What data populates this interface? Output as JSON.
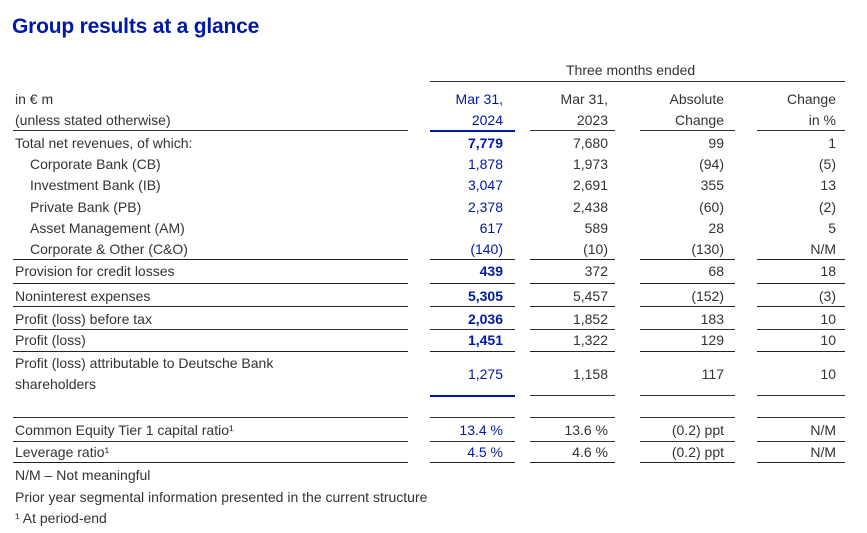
{
  "title": "Group results at a glance",
  "colors": {
    "accent": "#0018a8",
    "text": "#333333"
  },
  "header": {
    "group": "Three months ended",
    "unit_line1": "in € m",
    "unit_line2": "(unless stated otherwise)",
    "col1_line1": "Mar 31,",
    "col1_line2": "2024",
    "col2_line1": "Mar 31,",
    "col2_line2": "2023",
    "col3_line1": "Absolute",
    "col3_line2": "Change",
    "col4_line1": "Change",
    "col4_line2": "in %"
  },
  "rows": [
    {
      "label": "Total net revenues, of which:",
      "c1": "7,779",
      "c2": "7,680",
      "c3": "99",
      "c4": "1"
    },
    {
      "label": "Corporate Bank (CB)",
      "c1": "1,878",
      "c2": "1,973",
      "c3": "(94)",
      "c4": "(5)"
    },
    {
      "label": "Investment Bank (IB)",
      "c1": "3,047",
      "c2": "2,691",
      "c3": "355",
      "c4": "13"
    },
    {
      "label": "Private Bank (PB)",
      "c1": "2,378",
      "c2": "2,438",
      "c3": "(60)",
      "c4": "(2)"
    },
    {
      "label": "Asset Management (AM)",
      "c1": "617",
      "c2": "589",
      "c3": "28",
      "c4": "5"
    },
    {
      "label": "Corporate & Other (C&O)",
      "c1": "(140)",
      "c2": "(10)",
      "c3": "(130)",
      "c4": "N/M"
    },
    {
      "label": "Provision for credit losses",
      "c1": "439",
      "c2": "372",
      "c3": "68",
      "c4": "18"
    },
    {
      "label": "Noninterest expenses",
      "c1": "5,305",
      "c2": "5,457",
      "c3": "(152)",
      "c4": "(3)"
    },
    {
      "label": "Profit (loss) before tax",
      "c1": "2,036",
      "c2": "1,852",
      "c3": "183",
      "c4": "10"
    },
    {
      "label": "Profit (loss)",
      "c1": "1,451",
      "c2": "1,322",
      "c3": "129",
      "c4": "10"
    },
    {
      "label_line1": "Profit (loss) attributable to Deutsche Bank",
      "label_line2": "shareholders",
      "c1": "1,275",
      "c2": "1,158",
      "c3": "117",
      "c4": "10"
    },
    {
      "label": "Common Equity Tier 1 capital ratio¹",
      "c1": "13.4 %",
      "c2": "13.6 %",
      "c3": "(0.2) ppt",
      "c4": "N/M"
    },
    {
      "label": "Leverage ratio¹",
      "c1": "4.5 %",
      "c2": "4.6 %",
      "c3": "(0.2) ppt",
      "c4": "N/M"
    }
  ],
  "footnotes": [
    "N/M – Not meaningful",
    "Prior year segmental information presented in the current structure",
    "¹ At period-end"
  ]
}
